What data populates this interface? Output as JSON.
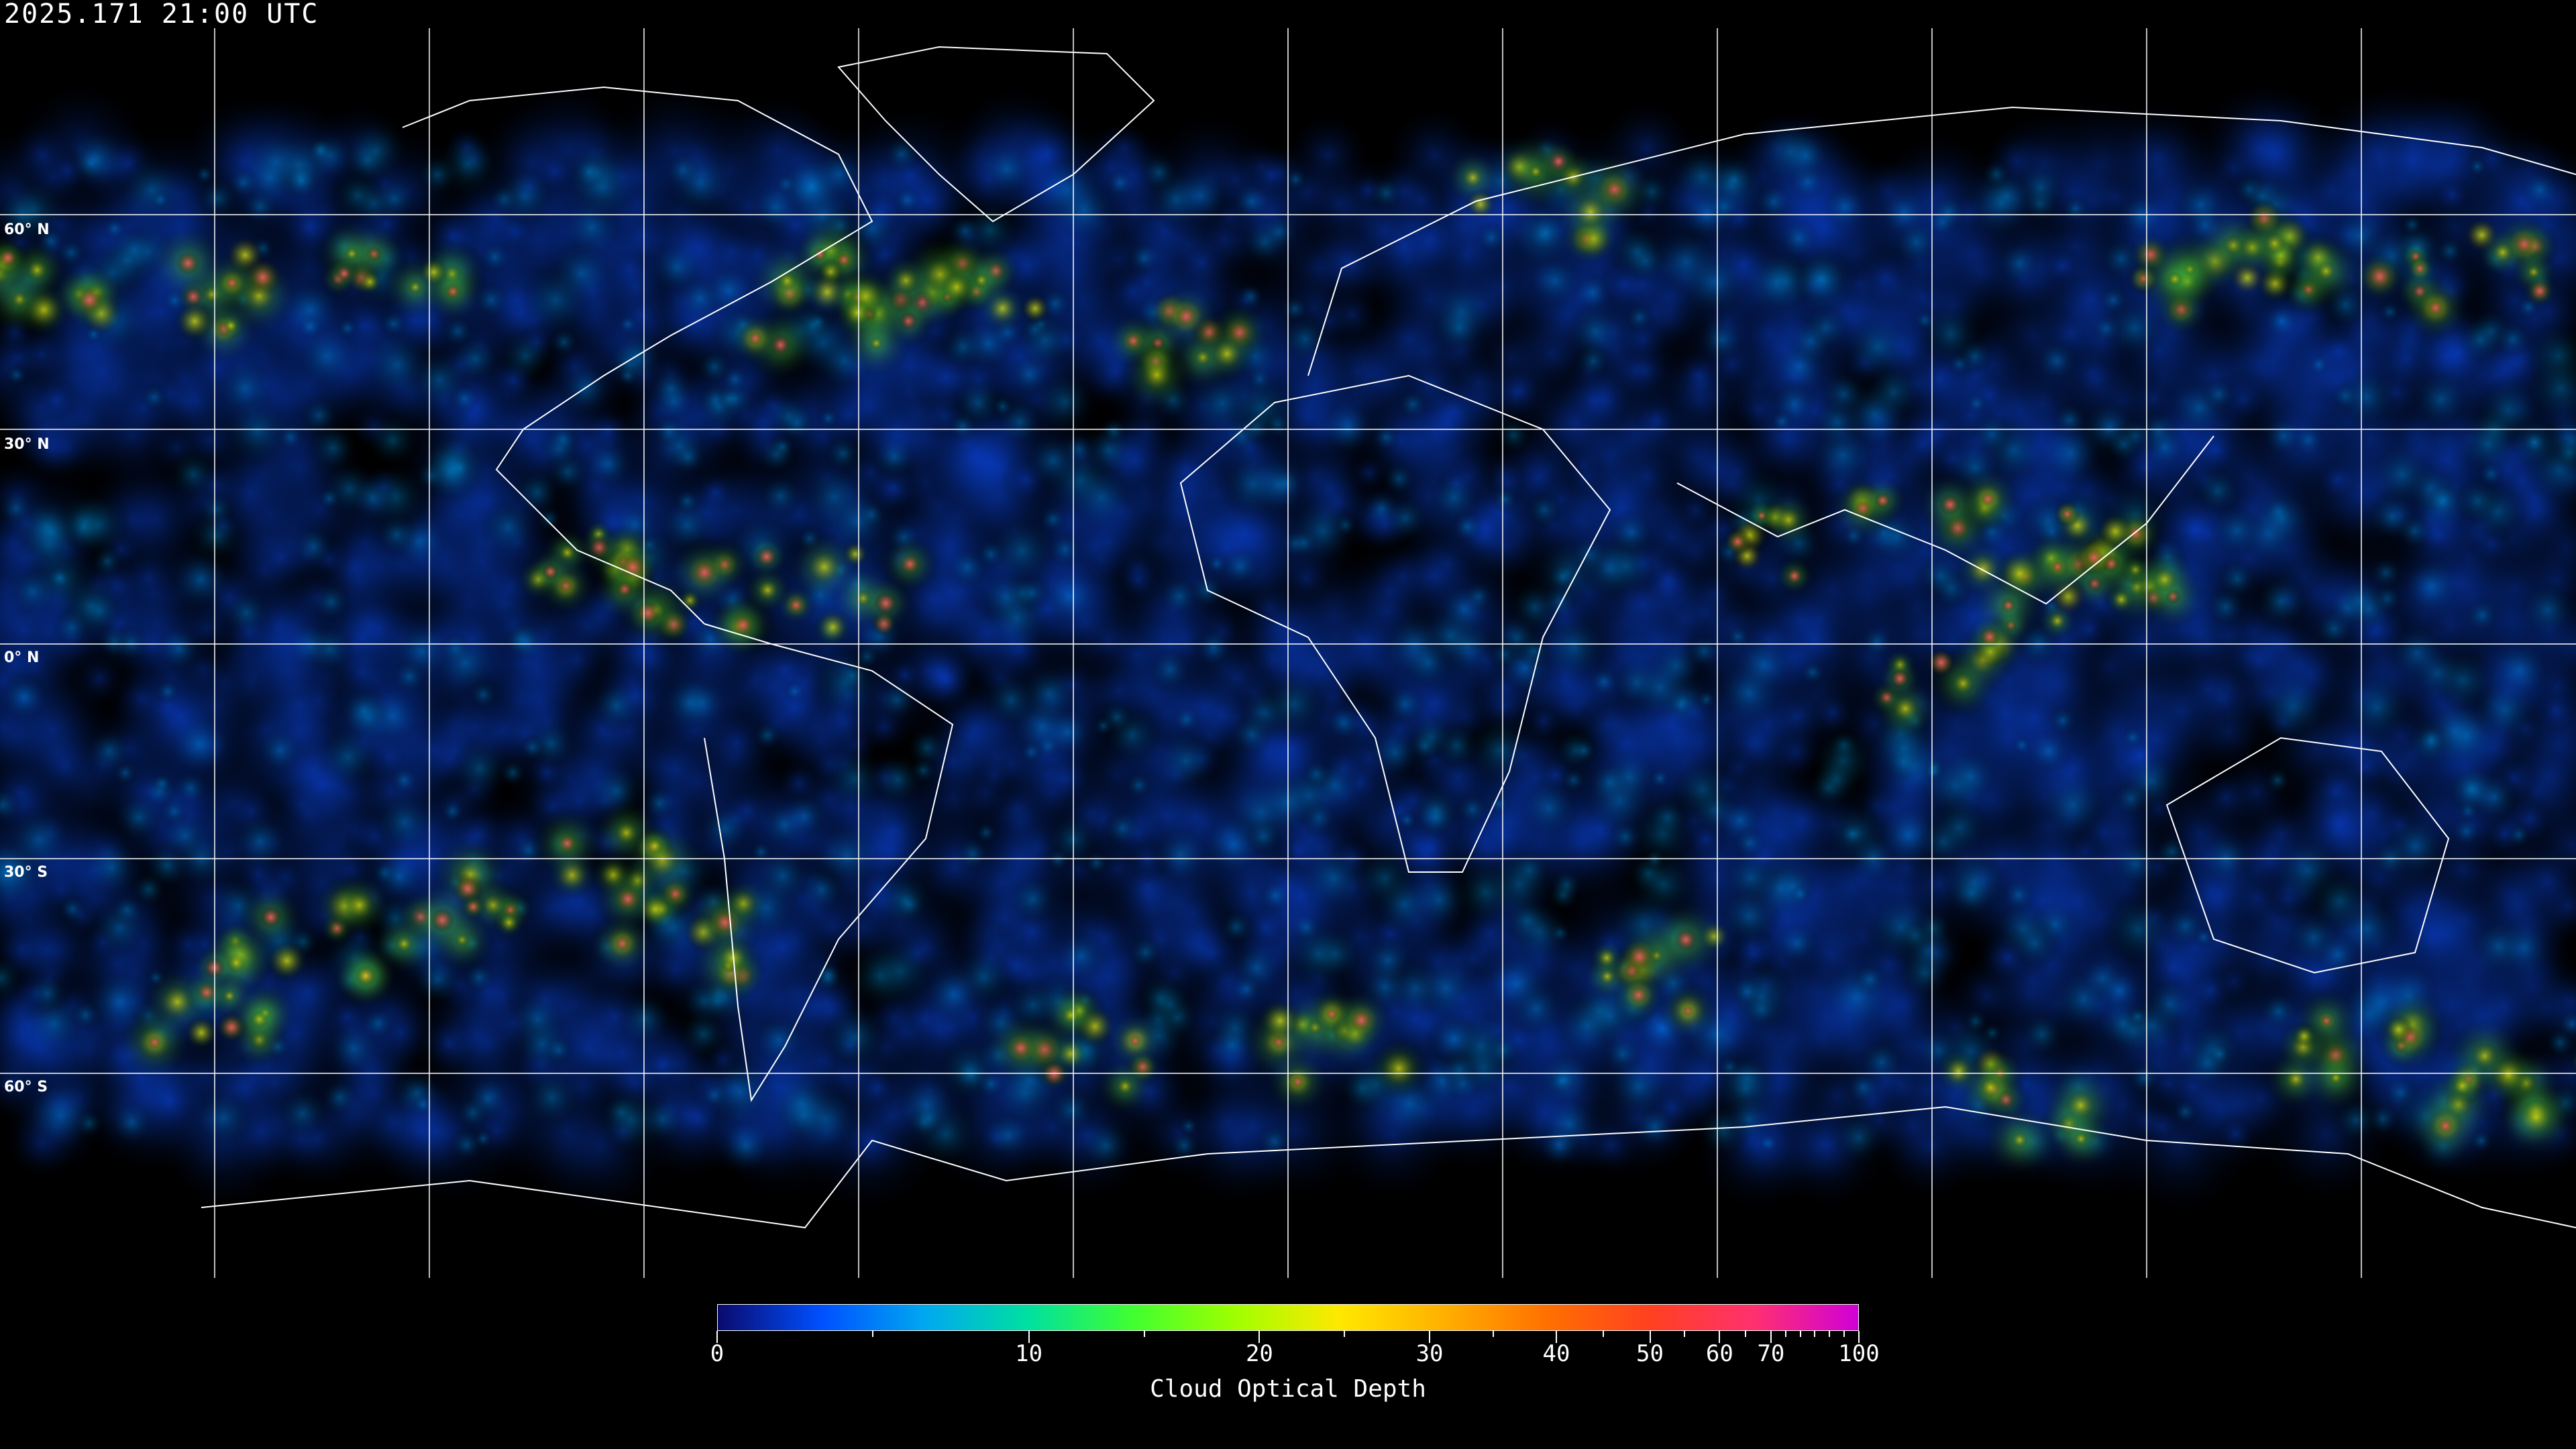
{
  "timestamp": "2025.171 21:00 UTC",
  "map": {
    "projection": "equirectangular",
    "grid_spacing_deg": 30,
    "lat_labels": [
      "60° N",
      "30° N",
      "0° N",
      "30° S",
      "60° S"
    ],
    "coastline_color": "#ffffff",
    "grid_color": "#ffffff"
  },
  "colorbar": {
    "title": "Cloud Optical Depth",
    "range": [
      0,
      100
    ],
    "tick_labels": [
      "0",
      "10",
      "20",
      "30",
      "40",
      "50",
      "60",
      "70",
      "100"
    ],
    "minor_ticks": [
      5,
      15,
      25,
      35,
      45,
      55,
      65,
      75,
      80,
      85,
      90,
      95
    ],
    "colors": [
      "#0a0a6e",
      "#0050ff",
      "#00a8f0",
      "#00e0a0",
      "#40ff30",
      "#a0ff00",
      "#ffe800",
      "#ffb000",
      "#ff7000",
      "#ff4020",
      "#ff3070",
      "#d000d8"
    ]
  }
}
